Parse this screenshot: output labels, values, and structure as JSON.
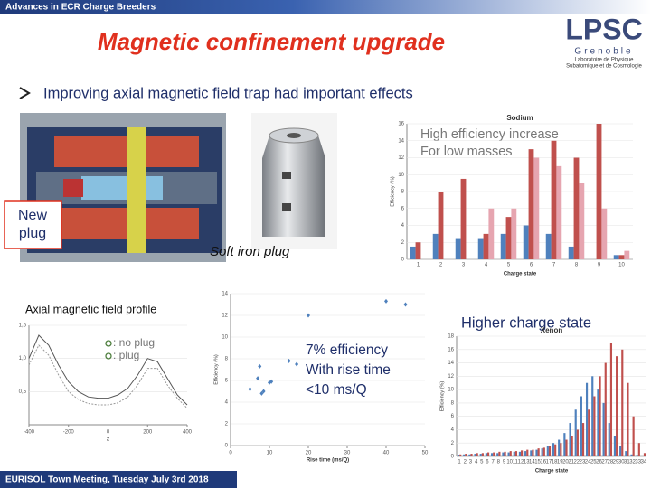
{
  "banner": "Advances in ECR Charge Breeders",
  "title": "Magnetic confinement upgrade",
  "logo": {
    "name": "LPSC",
    "city": "Grenoble",
    "subtitle": [
      "Laboratoire de Physique",
      "Subatomique et de Cosmologie"
    ]
  },
  "bullet": "Improving axial magnetic field trap had important effects",
  "labels": {
    "new_plug": [
      "New",
      "plug"
    ],
    "soft_iron": "Soft iron plug",
    "high_eff": [
      "High efficiency increase",
      "For low masses"
    ],
    "profile": "Axial magnetic field profile",
    "higher_cs": "Higher charge state",
    "efficiency_note": [
      "7% efficiency",
      "With rise time",
      "<10 ms/Q"
    ]
  },
  "footer": "EURISOL Town Meeting, Tuesday July 3rd 2018",
  "chart_data": [
    {
      "type": "bar",
      "title": "Sodium",
      "x_label": "Charge state",
      "y_label": "Efficiency (%)",
      "categories": [
        1,
        2,
        3,
        4,
        5,
        6,
        7,
        8,
        9,
        10
      ],
      "series": [
        {
          "color": "#4f81bd",
          "values": [
            1.5,
            3,
            2.5,
            2.5,
            3,
            4,
            3,
            1.5,
            null,
            0.5
          ]
        },
        {
          "color": "#c0504d",
          "values": [
            2,
            8,
            9.5,
            3,
            5,
            13,
            14,
            12,
            16,
            0.5
          ]
        },
        {
          "color": "#e6a5b0",
          "values": [
            null,
            null,
            null,
            6,
            6,
            12,
            11,
            9,
            6,
            1
          ]
        }
      ],
      "ylim": [
        0,
        16
      ],
      "yticks": [
        0,
        2,
        4,
        6,
        8,
        10,
        12,
        14,
        16
      ]
    },
    {
      "type": "line",
      "x_label": "z",
      "x": [
        -400,
        -350,
        -300,
        -250,
        -200,
        -150,
        -100,
        -50,
        0,
        50,
        100,
        150,
        200,
        250,
        300,
        350,
        400
      ],
      "series": [
        {
          "name": ": no plug",
          "color": "#555555",
          "values": [
            1.0,
            1.35,
            1.2,
            0.9,
            0.65,
            0.5,
            0.42,
            0.4,
            0.4,
            0.45,
            0.55,
            0.75,
            1.0,
            0.95,
            0.7,
            0.45,
            0.3
          ]
        },
        {
          "name": ": plug",
          "color": "#999999",
          "values": [
            0.9,
            1.2,
            1.05,
            0.75,
            0.5,
            0.38,
            0.32,
            0.3,
            0.3,
            0.33,
            0.42,
            0.6,
            0.85,
            0.85,
            0.6,
            0.4,
            0.25
          ]
        }
      ],
      "xlim": [
        -400,
        400
      ],
      "xticks": [
        -400,
        -200,
        0,
        200,
        400
      ],
      "ylim": [
        0,
        1.5
      ],
      "yticks": [
        {
          "value": 0.5,
          "label": "0,5"
        },
        {
          "value": 1,
          "label": "1,0"
        },
        {
          "value": 1.5,
          "label": "1,5"
        }
      ]
    },
    {
      "type": "scatter",
      "x_label": "Rise time (ms/Q)",
      "y_label": "Efficiency (%)",
      "color": "#4f81bd",
      "x": [
        5,
        7,
        8,
        8.5,
        7.5,
        10,
        10.5,
        15,
        17,
        20,
        40,
        45
      ],
      "values": [
        5.2,
        6.2,
        4.8,
        5,
        7.3,
        5.8,
        5.9,
        7.8,
        7.5,
        12,
        13.3,
        13
      ],
      "xlim": [
        0,
        50
      ],
      "xticks": [
        0,
        10,
        20,
        30,
        40,
        50
      ],
      "ylim": [
        0,
        14
      ],
      "yticks": [
        0,
        2,
        4,
        6,
        8,
        10,
        12,
        14
      ]
    },
    {
      "type": "bar",
      "title": "Xenon",
      "x_label": "Charge state",
      "y_label": "Efficiency (%)",
      "categories": [
        1,
        2,
        3,
        4,
        5,
        6,
        7,
        8,
        9,
        10,
        11,
        12,
        13,
        14,
        15,
        16,
        17,
        18,
        19,
        20,
        21,
        22,
        23,
        24,
        25,
        26,
        27,
        28,
        29,
        30,
        31,
        32,
        33,
        34
      ],
      "series": [
        {
          "color": "#4f81bd",
          "values": [
            0.2,
            0.3,
            0.3,
            0.4,
            0.4,
            0.5,
            0.5,
            0.5,
            0.6,
            0.6,
            0.7,
            0.7,
            0.8,
            0.9,
            1,
            1.2,
            1.5,
            2,
            2.5,
            3.5,
            5,
            7,
            9,
            11,
            12,
            10,
            8,
            5,
            3,
            1.5,
            0.8,
            0.3,
            0.1,
            0
          ]
        },
        {
          "color": "#c0504d",
          "values": [
            0.3,
            0.4,
            0.4,
            0.5,
            0.5,
            0.6,
            0.6,
            0.7,
            0.7,
            0.8,
            0.8,
            0.9,
            1,
            1,
            1.2,
            1.3,
            1.5,
            1.8,
            2,
            2.5,
            3,
            4,
            5,
            7,
            9,
            12,
            14,
            17,
            15,
            16,
            11,
            6,
            2,
            0.5
          ]
        }
      ],
      "ylim": [
        0,
        18
      ],
      "yticks": [
        0,
        2,
        4,
        6,
        8,
        10,
        12,
        14,
        16,
        18
      ]
    }
  ]
}
